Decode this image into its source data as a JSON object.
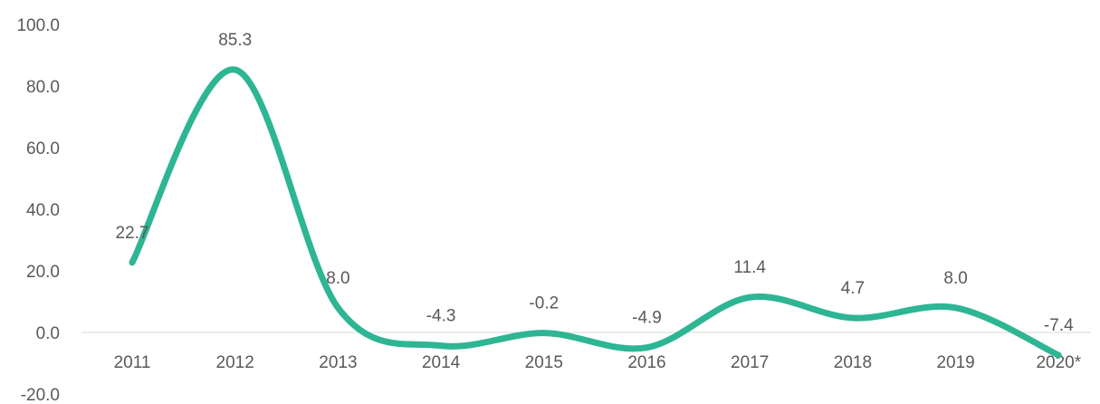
{
  "chart_data": {
    "type": "line",
    "categories": [
      "2011",
      "2012",
      "2013",
      "2014",
      "2015",
      "2016",
      "2017",
      "2018",
      "2019",
      "2020*"
    ],
    "series": [
      {
        "values": [
          22.7,
          85.3,
          8.0,
          -4.3,
          -0.2,
          -4.9,
          11.4,
          4.7,
          8.0,
          -7.4
        ],
        "data_labels": [
          "22.7",
          "85.3",
          "8.0",
          "-4.3",
          "-0.2",
          "-4.9",
          "11.4",
          "4.7",
          "8.0",
          "-7.4"
        ],
        "color": "#2db594"
      }
    ],
    "ylim": [
      -20,
      100
    ],
    "yticks": [
      100,
      80,
      60,
      40,
      20,
      0,
      -20
    ],
    "ytick_labels": [
      "100.0",
      "80.0",
      "60.0",
      "40.0",
      "20.0",
      "0.0",
      "-20.0"
    ],
    "smooth": true,
    "grid": false,
    "axis_line_color": "#d9d9d9"
  }
}
